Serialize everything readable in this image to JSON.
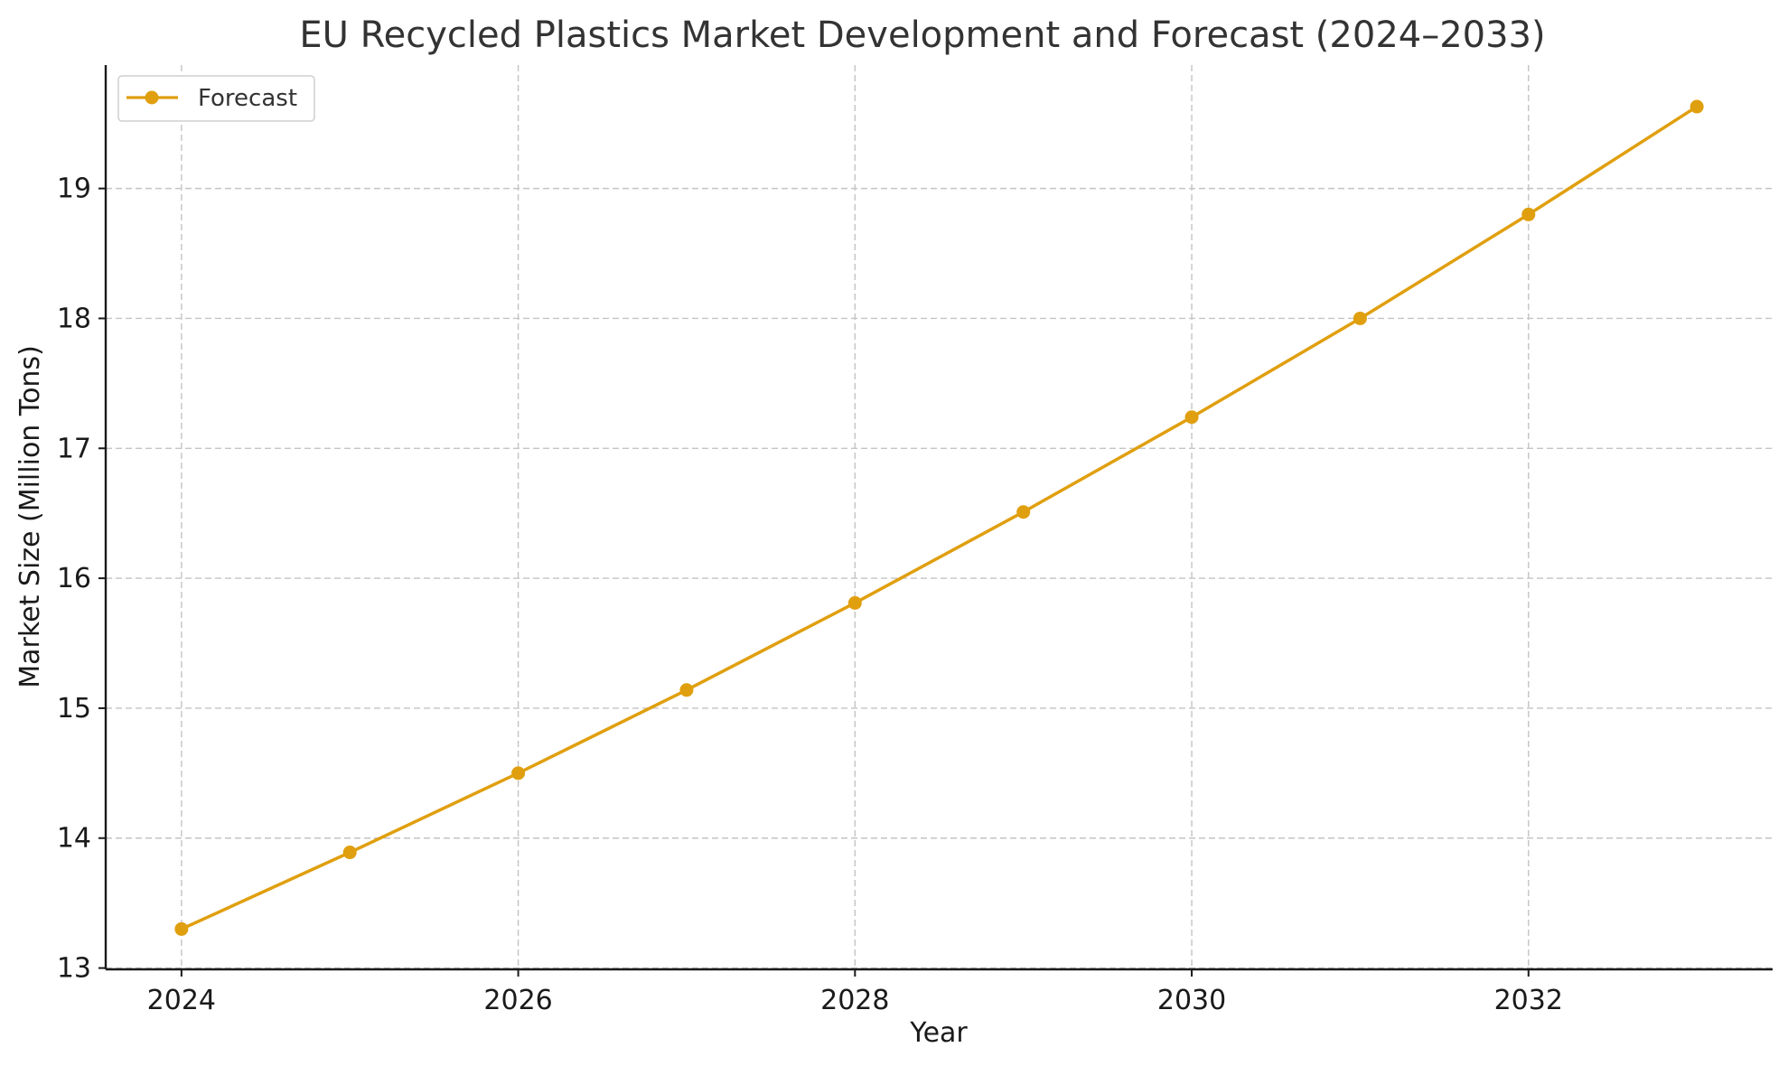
{
  "chart_data": {
    "type": "line",
    "title": "EU Recycled Plastics Market Development and Forecast (2024–2033)",
    "xlabel": "Year",
    "ylabel": "Market Size (Million Tons)",
    "x": [
      2024,
      2025,
      2026,
      2027,
      2028,
      2029,
      2030,
      2031,
      2032,
      2033
    ],
    "xticks": [
      2024,
      2026,
      2028,
      2030,
      2032
    ],
    "yticks": [
      13,
      14,
      15,
      16,
      17,
      18,
      19
    ],
    "xlim": [
      2023.55,
      2033.45
    ],
    "ylim": [
      12.99,
      19.95
    ],
    "grid": true,
    "legend_position": "top-left",
    "series": [
      {
        "name": "Forecast",
        "color": "#E09F0E",
        "marker": "circle",
        "values": [
          13.3,
          13.89,
          14.5,
          15.14,
          15.81,
          16.51,
          17.24,
          18.0,
          18.8,
          19.63
        ]
      }
    ]
  }
}
